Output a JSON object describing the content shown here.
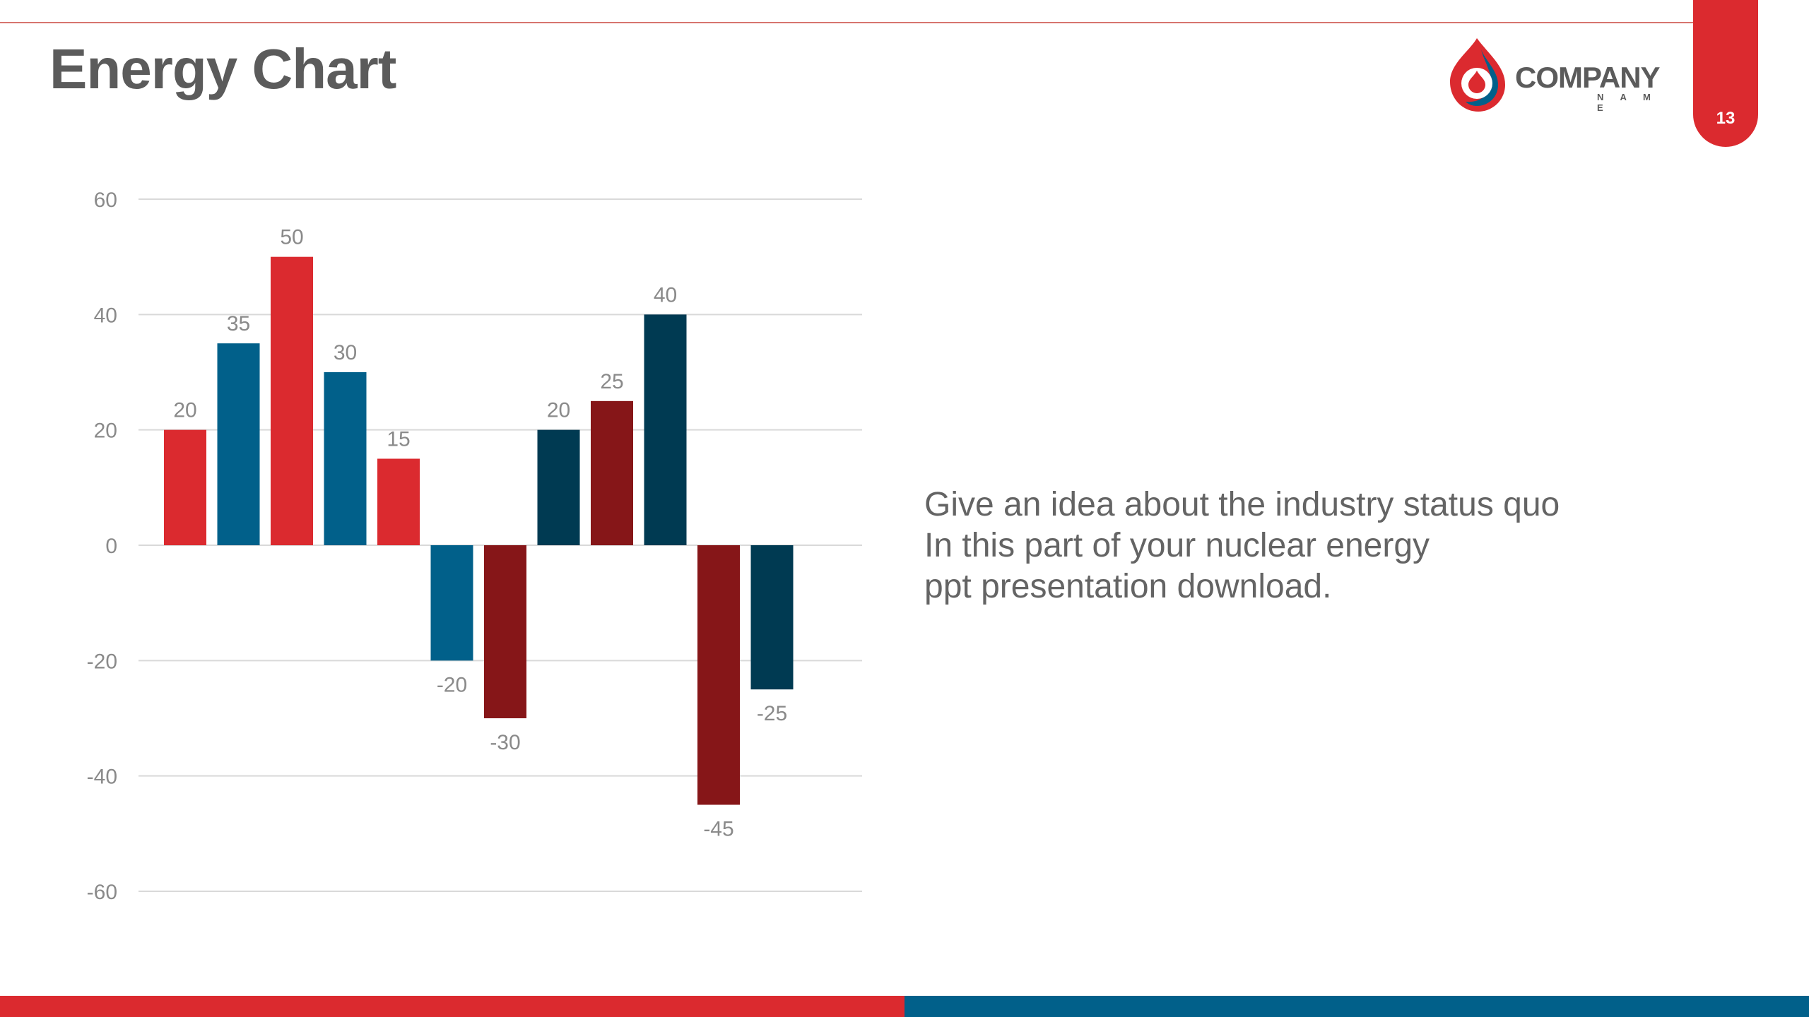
{
  "header": {
    "title": "Energy Chart",
    "page_number": "13"
  },
  "logo": {
    "word": "COMPANY",
    "sub": "N A M E",
    "colors": {
      "red": "#db2a2f",
      "blue": "#01608a",
      "gray": "#5b5b5b"
    }
  },
  "description": {
    "lines": [
      "Give an idea about the industry status quo",
      "In this part of your nuclear energy",
      "ppt presentation download."
    ]
  },
  "chart_data": {
    "type": "bar",
    "title": "",
    "xlabel": "",
    "ylabel": "",
    "ylim": [
      -60,
      60
    ],
    "yticks": [
      60,
      40,
      20,
      0,
      -20,
      -40,
      -60
    ],
    "grid": true,
    "legend": "none",
    "values": [
      20,
      35,
      50,
      30,
      15,
      -20,
      -30,
      20,
      25,
      40,
      -45,
      -25
    ],
    "data_labels": [
      "20",
      "35",
      "50",
      "30",
      "15",
      "-20",
      "-30",
      "20",
      "25",
      "40",
      "-45",
      "-25"
    ],
    "colors": [
      "#db2a2f",
      "#01608a",
      "#db2a2f",
      "#01608a",
      "#db2a2f",
      "#01608a",
      "#861618",
      "#003a52",
      "#861618",
      "#003a52",
      "#861618",
      "#003a52"
    ]
  },
  "theme": {
    "accent_red": "#db2a2f",
    "accent_blue": "#01608a",
    "dark_red": "#861618",
    "dark_blue": "#003a52"
  }
}
